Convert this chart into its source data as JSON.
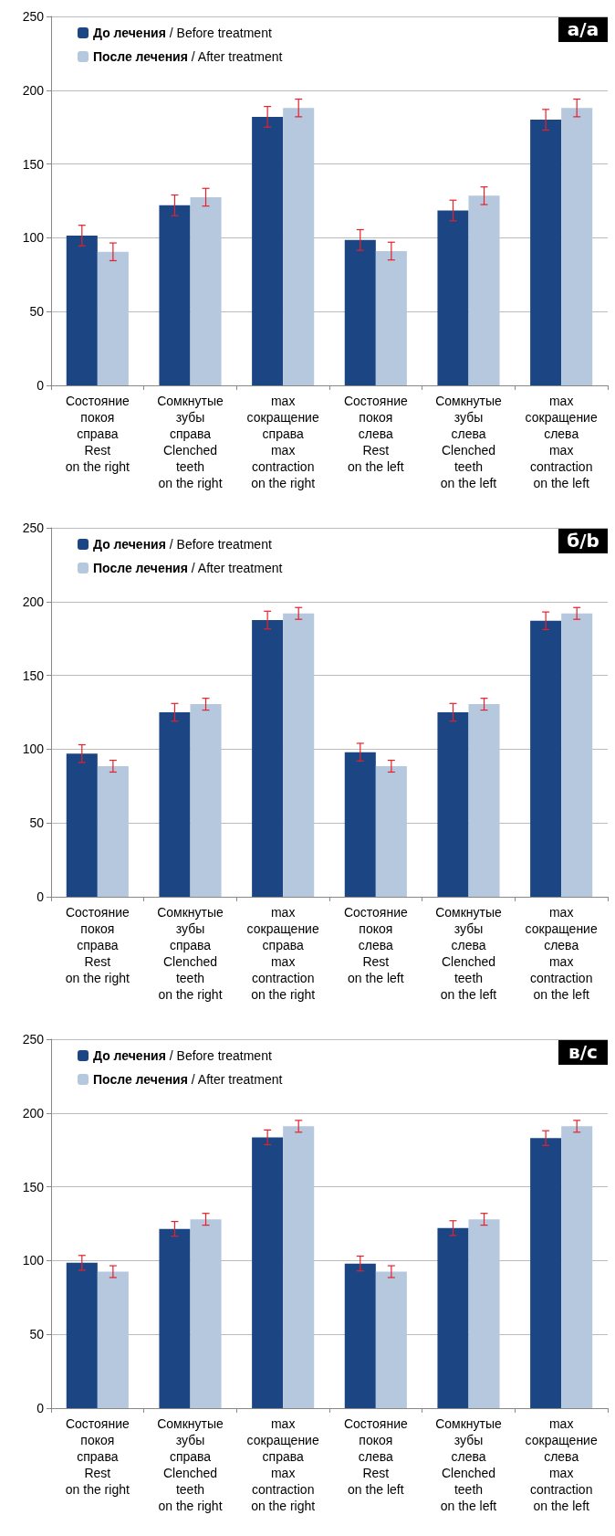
{
  "chart_data": [
    {
      "type": "bar",
      "categories": [
        "Состояние\nпокоя\nсправа\nRest\non the right",
        "Сомкнутые\nзубы\nсправа\nClenched\nteeth\non the right",
        "max\nсокращение\nсправа\nmax\ncontraction\non the right",
        "Состояние\nпокоя\nслева\nRest\non the left",
        "Сомкнутые\nзубы\nслева\nClenched\nteeth\non the left",
        "max\nсокращение\nслева\nmax\ncontraction\non the left"
      ],
      "series": [
        {
          "name": "До лечения / Before treatment",
          "color": "#1b4683",
          "values": [
            101.5,
            122,
            182,
            98.5,
            118.5,
            180
          ],
          "errors": [
            7,
            7,
            7,
            7,
            7,
            7
          ]
        },
        {
          "name": "После лечения / After treatment",
          "color": "#b5c8dd",
          "values": [
            90.5,
            127.5,
            188,
            91,
            128.5,
            188
          ],
          "errors": [
            6,
            6,
            6,
            6,
            6,
            6
          ]
        }
      ],
      "ylim": [
        0,
        250
      ],
      "yticks": [
        0,
        50,
        100,
        150,
        200,
        250
      ],
      "grid": "y",
      "legend": "top left",
      "annotations": [
        "а/a"
      ]
    },
    {
      "type": "bar",
      "categories": [
        "Состояние\nпокоя\nсправа\nRest\non the right",
        "Сомкнутые\nзубы\nсправа\nClenched\nteeth\non the right",
        "max\nсокращение\nсправа\nmax\ncontraction\non the right",
        "Состояние\nпокоя\nслева\nRest\non the left",
        "Сомкнутые\nзубы\nслева\nClenched\nteeth\non the left",
        "max\nсокращение\nслева\nmax\ncontraction\non the left"
      ],
      "series": [
        {
          "name": "До лечения / Before treatment",
          "color": "#1b4683",
          "values": [
            97,
            125,
            187.5,
            98,
            125,
            187
          ],
          "errors": [
            6,
            6,
            6,
            6,
            6,
            6
          ]
        },
        {
          "name": "После лечения / After treatment",
          "color": "#b5c8dd",
          "values": [
            88.5,
            130.5,
            192,
            88.5,
            130.5,
            192
          ],
          "errors": [
            4,
            4,
            4,
            4,
            4,
            4
          ]
        }
      ],
      "ylim": [
        0,
        250
      ],
      "yticks": [
        0,
        50,
        100,
        150,
        200,
        250
      ],
      "grid": "y",
      "legend": "top left",
      "annotations": [
        "б/b"
      ]
    },
    {
      "type": "bar",
      "categories": [
        "Состояние\nпокоя\nсправа\nRest\non the right",
        "Сомкнутые\nзубы\nсправа\nClenched\nteeth\non the right",
        "max\nсокращение\nсправа\nmax\ncontraction\non the right",
        "Состояние\nпокоя\nслева\nRest\non the left",
        "Сомкнутые\nзубы\nслева\nClenched\nteeth\non the left",
        "max\nсокращение\nслева\nmax\ncontraction\non the left"
      ],
      "series": [
        {
          "name": "До лечения / Before treatment",
          "color": "#1b4683",
          "values": [
            98.5,
            121.5,
            183.5,
            98,
            122,
            183
          ],
          "errors": [
            5,
            5,
            5,
            5,
            5,
            5
          ]
        },
        {
          "name": "После лечения / After treatment",
          "color": "#b5c8dd",
          "values": [
            92.5,
            128,
            191,
            92.5,
            128,
            191
          ],
          "errors": [
            4,
            4,
            4,
            4,
            4,
            4
          ]
        }
      ],
      "ylim": [
        0,
        250
      ],
      "yticks": [
        0,
        50,
        100,
        150,
        200,
        250
      ],
      "grid": "y",
      "legend": "top left",
      "annotations": [
        "в/c"
      ]
    }
  ]
}
